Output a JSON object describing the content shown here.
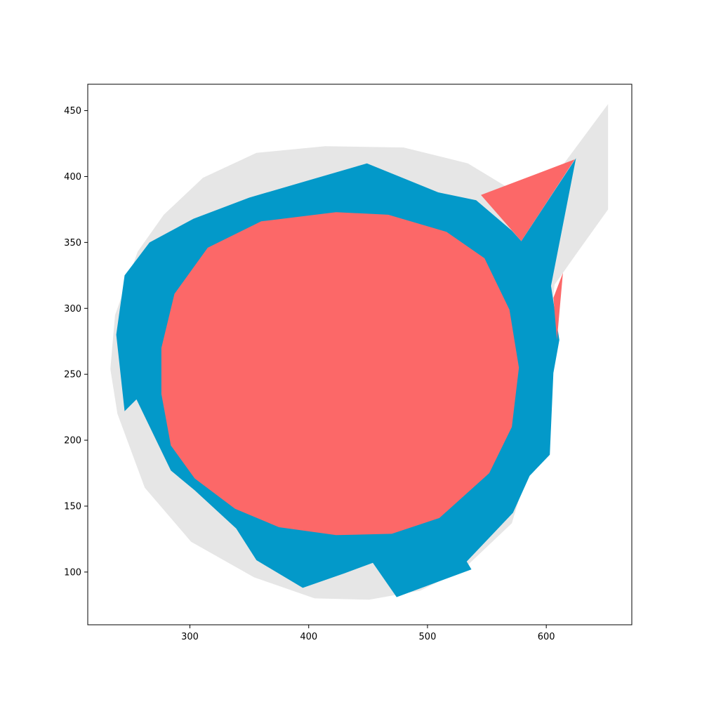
{
  "chart_data": {
    "type": "area",
    "title": "",
    "xlabel": "",
    "ylabel": "",
    "xlim": [
      214,
      672
    ],
    "ylim": [
      60,
      470
    ],
    "grid": false,
    "legend": "none",
    "xticks": [
      {
        "value": 300,
        "label": "300"
      },
      {
        "value": 400,
        "label": "400"
      },
      {
        "value": 500,
        "label": "500"
      },
      {
        "value": 600,
        "label": "600"
      }
    ],
    "yticks": [
      {
        "value": 100,
        "label": "100"
      },
      {
        "value": 150,
        "label": "150"
      },
      {
        "value": 200,
        "label": "200"
      },
      {
        "value": 250,
        "label": "250"
      },
      {
        "value": 300,
        "label": "300"
      },
      {
        "value": 350,
        "label": "350"
      },
      {
        "value": 400,
        "label": "400"
      },
      {
        "value": 450,
        "label": "450"
      }
    ],
    "colors": {
      "gray": "#e6e6e6",
      "blue": "#0399c9",
      "red": "#fc6868"
    },
    "series": [
      {
        "color": "gray",
        "points": [
          [
            652,
            455
          ],
          [
            652,
            375
          ],
          [
            625,
            341
          ],
          [
            607,
            318
          ],
          [
            598,
            243
          ],
          [
            592,
            200
          ],
          [
            571,
            137
          ],
          [
            530,
            102
          ],
          [
            494,
            86
          ],
          [
            451,
            79
          ],
          [
            405,
            80
          ],
          [
            354,
            96
          ],
          [
            301,
            123
          ],
          [
            262,
            164
          ],
          [
            239,
            220
          ],
          [
            233,
            254
          ],
          [
            237,
            295
          ],
          [
            256,
            343
          ],
          [
            278,
            371
          ],
          [
            311,
            399
          ],
          [
            356,
            418
          ],
          [
            414,
            423
          ],
          [
            480,
            422
          ],
          [
            534,
            410
          ],
          [
            587,
            381
          ],
          [
            615,
            410
          ]
        ]
      },
      {
        "color": "blue",
        "points": [
          [
            625,
            414
          ],
          [
            604,
            317
          ],
          [
            611,
            276
          ],
          [
            606,
            251
          ],
          [
            603,
            189
          ],
          [
            586,
            173
          ],
          [
            572,
            145
          ],
          [
            533,
            108
          ],
          [
            537,
            102
          ],
          [
            474,
            81
          ],
          [
            454,
            107
          ],
          [
            430,
            99
          ],
          [
            395,
            88
          ],
          [
            356,
            109
          ],
          [
            339,
            133
          ],
          [
            304,
            162
          ],
          [
            284,
            177
          ],
          [
            255,
            231
          ],
          [
            245,
            222
          ],
          [
            238,
            280
          ],
          [
            245,
            325
          ],
          [
            266,
            350
          ],
          [
            303,
            368
          ],
          [
            350,
            384
          ],
          [
            449,
            410
          ],
          [
            509,
            388
          ],
          [
            541,
            382
          ],
          [
            571,
            359
          ],
          [
            579,
            351
          ]
        ]
      },
      {
        "color": "red",
        "points": [
          [
            423,
            373
          ],
          [
            467,
            371
          ],
          [
            516,
            358
          ],
          [
            548,
            338
          ],
          [
            569,
            299
          ],
          [
            577,
            255
          ],
          [
            571,
            210
          ],
          [
            552,
            175
          ],
          [
            510,
            141
          ],
          [
            470,
            129
          ],
          [
            423,
            128
          ],
          [
            375,
            134
          ],
          [
            338,
            148
          ],
          [
            304,
            171
          ],
          [
            284,
            196
          ],
          [
            276,
            235
          ],
          [
            276,
            270
          ],
          [
            287,
            311
          ],
          [
            315,
            346
          ],
          [
            360,
            366
          ]
        ]
      },
      {
        "color": "red",
        "points": [
          [
            545,
            386
          ],
          [
            624,
            413
          ],
          [
            579,
            351
          ]
        ]
      },
      {
        "color": "red",
        "points": [
          [
            606,
            308
          ],
          [
            614,
            327
          ],
          [
            609,
            276
          ]
        ]
      }
    ]
  }
}
